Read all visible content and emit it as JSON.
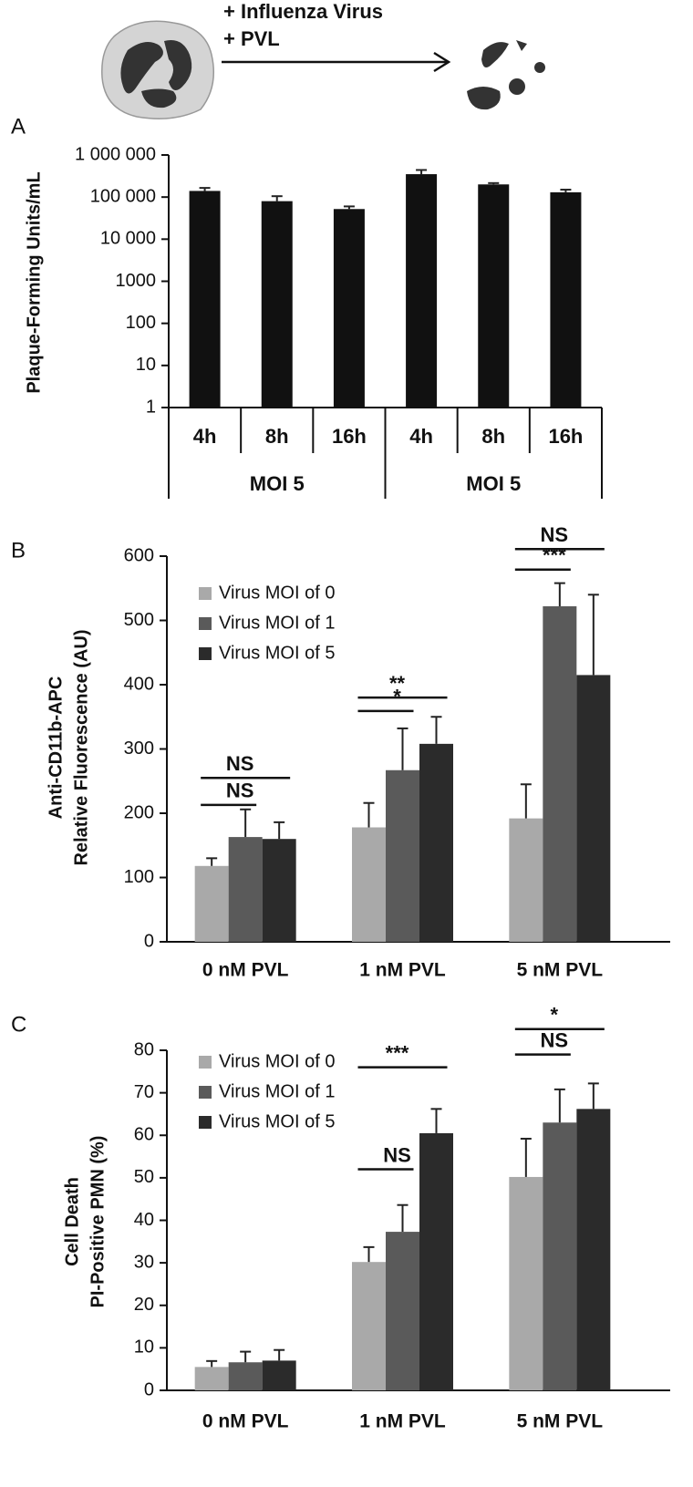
{
  "schematic": {
    "labels": [
      "+ Influenza Virus",
      "+ PVL"
    ]
  },
  "chart_data": [
    {
      "type": "bar",
      "panel": "A",
      "y_label": "Plaque-Forming Units/mL",
      "log_scale": true,
      "color": "#111111",
      "categories": [
        "4h",
        "8h",
        "16h",
        "4h",
        "8h",
        "16h"
      ],
      "group_labels": [
        "MOI 5",
        "MOI 5"
      ],
      "values": [
        140000,
        80000,
        52000,
        350000,
        200000,
        130000
      ],
      "errors": [
        25000,
        25000,
        8000,
        90000,
        15000,
        20000
      ],
      "ylim": [
        1,
        1000000
      ],
      "yticks": [
        1,
        10,
        100,
        1000,
        {
          "value": 10000,
          "label": "10 000"
        },
        {
          "value": 100000,
          "label": "100 000"
        },
        {
          "value": 1000000,
          "label": "1 000 000"
        }
      ]
    },
    {
      "type": "grouped_bar",
      "panel": "B",
      "y_label": [
        "Anti-CD11b-APC",
        "Relative Fluorescence (AU)"
      ],
      "categories": [
        "0 nM PVL",
        "1 nM PVL",
        "5 nM PVL"
      ],
      "series": [
        {
          "name": "Virus MOI of 0",
          "color": "#a9a9a9",
          "values": [
            118,
            178,
            192
          ],
          "errors": [
            12,
            38,
            53
          ]
        },
        {
          "name": "Virus MOI  of 1",
          "color": "#5a5a5a",
          "values": [
            163,
            267,
            522
          ],
          "errors": [
            43,
            65,
            36
          ]
        },
        {
          "name": "Virus MOI of 5",
          "color": "#2b2b2b",
          "values": [
            160,
            308,
            415
          ],
          "errors": [
            26,
            42,
            125
          ]
        }
      ],
      "ylim": [
        0,
        600
      ],
      "yticks": [
        0,
        100,
        200,
        300,
        400,
        500,
        600
      ],
      "significance": [
        {
          "group": 0,
          "from": 0,
          "to": 1,
          "label": "NS",
          "y": 213
        },
        {
          "group": 0,
          "from": 0,
          "to": 2,
          "label": "NS",
          "y": 255
        },
        {
          "group": 1,
          "from": 0,
          "to": 1,
          "label": "*",
          "y": 359
        },
        {
          "group": 1,
          "from": 0,
          "to": 2,
          "label": "**",
          "y": 380
        },
        {
          "group": 2,
          "from": 0,
          "to": 1,
          "label": "***",
          "y": 579
        },
        {
          "group": 2,
          "from": 0,
          "to": 2,
          "label": "NS",
          "y": 611
        }
      ]
    },
    {
      "type": "grouped_bar",
      "panel": "C",
      "y_label": [
        "Cell Death",
        "PI-Positive PMN (%)"
      ],
      "categories": [
        "0 nM PVL",
        "1 nM PVL",
        "5 nM PVL"
      ],
      "series": [
        {
          "name": "Virus MOI of 0",
          "color": "#a9a9a9",
          "values": [
            5.5,
            30.2,
            50.2
          ],
          "errors": [
            1.4,
            3.5,
            9
          ]
        },
        {
          "name": "Virus MOI of 1",
          "color": "#5a5a5a",
          "values": [
            6.6,
            37.3,
            63
          ],
          "errors": [
            2.5,
            6.3,
            7.8
          ]
        },
        {
          "name": "Virus MOI of 5",
          "color": "#2b2b2b",
          "values": [
            7,
            60.5,
            66.2
          ],
          "errors": [
            2.5,
            5.7,
            6
          ]
        }
      ],
      "ylim": [
        0,
        80
      ],
      "yticks": [
        0,
        10,
        20,
        30,
        40,
        50,
        60,
        70,
        80
      ],
      "significance": [
        {
          "group": 1,
          "from": 0,
          "to": 1,
          "label": "NS",
          "y": 52
        },
        {
          "group": 1,
          "from": 0,
          "to": 2,
          "label": "***",
          "y": 76
        },
        {
          "group": 2,
          "from": 0,
          "to": 1,
          "label": "NS",
          "y": 79
        },
        {
          "group": 2,
          "from": 0,
          "to": 2,
          "label": "*",
          "y": 85
        }
      ]
    }
  ]
}
